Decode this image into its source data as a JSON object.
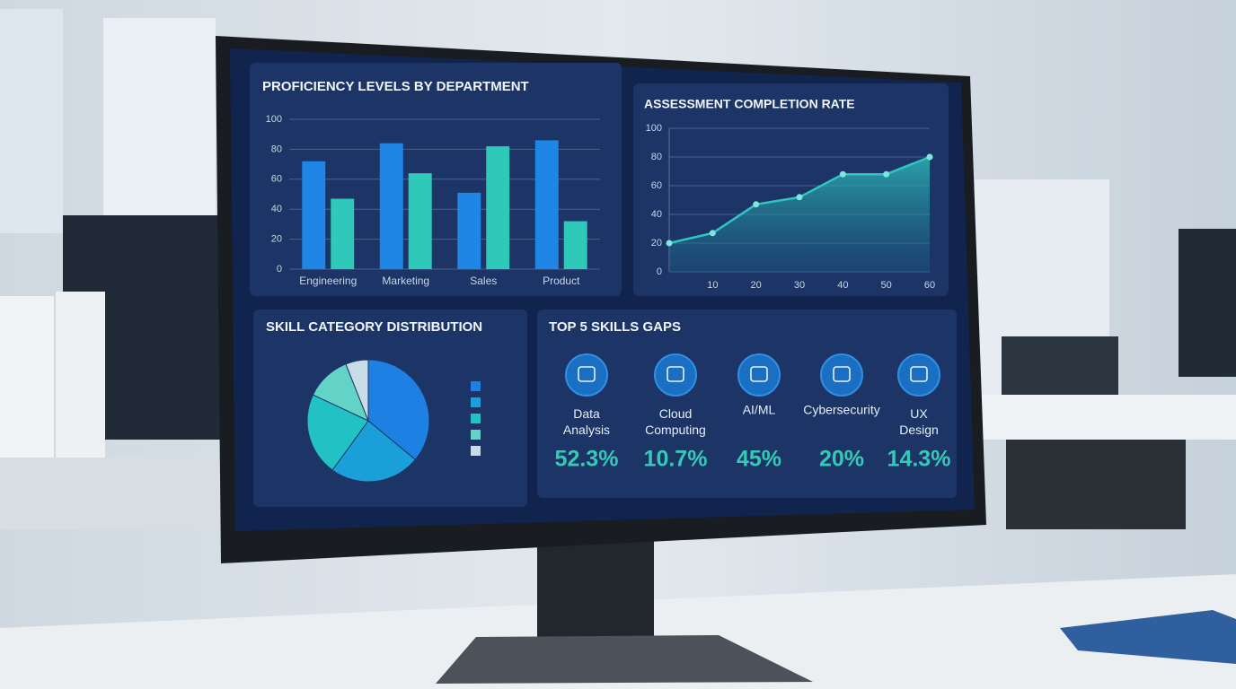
{
  "chart_data": [
    {
      "type": "bar",
      "title": "PROFICIENCY LEVELS BY DEPARTMENT",
      "categories": [
        "Engineering",
        "Marketing",
        "Sales",
        "Product"
      ],
      "series": [
        {
          "color": "#1f86e6",
          "values": [
            72,
            84,
            51,
            86
          ]
        },
        {
          "color": "#2ec9b8",
          "values": [
            47,
            64,
            82,
            32
          ]
        }
      ],
      "ylim": [
        0,
        100
      ],
      "yticks": [
        0,
        20,
        40,
        60,
        80,
        100
      ],
      "grid": true
    },
    {
      "type": "area",
      "title": "ASSESSMENT COMPLETION RATE",
      "x": [
        0,
        10,
        20,
        30,
        40,
        50,
        60
      ],
      "values": [
        20,
        27,
        47,
        52,
        68,
        68,
        80
      ],
      "color": "#2fc6c0",
      "xlim": [
        0,
        60
      ],
      "xticks": [
        10,
        20,
        30,
        40,
        50,
        60
      ],
      "ylim": [
        0,
        100
      ],
      "yticks": [
        0,
        20,
        40,
        60,
        80,
        100
      ],
      "grid": true
    },
    {
      "type": "pie",
      "title": "SKILL CATEGORY DISTRIBUTION",
      "values": [
        36,
        24,
        22,
        12,
        6
      ],
      "colors": [
        "#1e80e2",
        "#1a9fd8",
        "#22c1c3",
        "#62d3c6",
        "#c9dbe6"
      ]
    }
  ],
  "skills_gaps": {
    "title": "TOP 5 SKILLS GAPS",
    "items": [
      {
        "label": "Data Analysis",
        "value": "52.3%"
      },
      {
        "label": "Cloud Computing",
        "value": "10.7%"
      },
      {
        "label": "AI/ML",
        "value": "45%"
      },
      {
        "label": "Cybersecurity",
        "value": "20%"
      },
      {
        "label": "UX Design",
        "value": "14.3%"
      }
    ]
  }
}
